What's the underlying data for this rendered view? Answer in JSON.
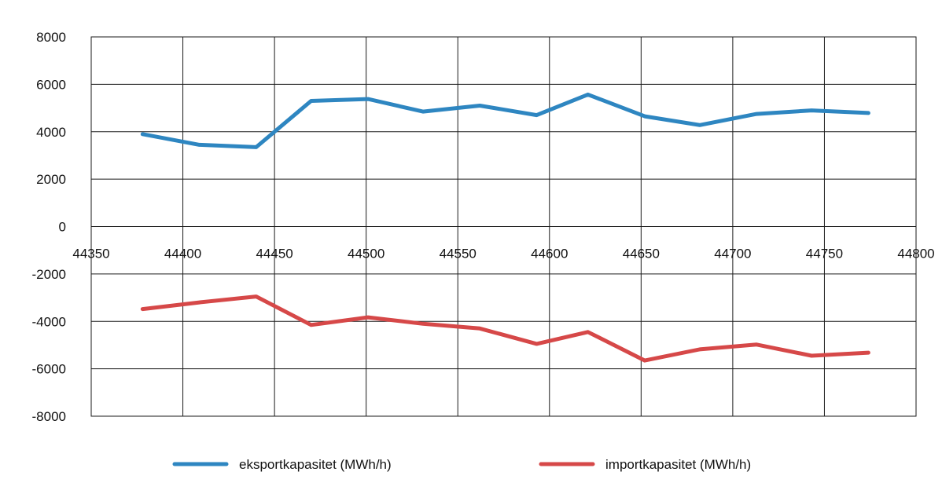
{
  "chart_data": {
    "type": "line",
    "title": "",
    "xlabel": "",
    "ylabel": "",
    "xlim": [
      44350,
      44800
    ],
    "ylim": [
      -8000,
      8000
    ],
    "x_ticks": [
      44350,
      44400,
      44450,
      44500,
      44550,
      44600,
      44650,
      44700,
      44750,
      44800
    ],
    "y_ticks": [
      8000,
      6000,
      4000,
      2000,
      0,
      -2000,
      -4000,
      -6000,
      -8000
    ],
    "grid": true,
    "legend_position": "bottom",
    "x": [
      44378,
      44409,
      44440,
      44470,
      44501,
      44531,
      44562,
      44593,
      44621,
      44652,
      44682,
      44713,
      44743,
      44774
    ],
    "series": [
      {
        "name": "eksportkapasitet (MWh/h)",
        "color": "#2e86c1",
        "values": [
          3900,
          3450,
          3350,
          5300,
          5380,
          4850,
          5100,
          4700,
          5570,
          4650,
          4280,
          4750,
          4900,
          4790
        ]
      },
      {
        "name": "importkapasitet (MWh/h)",
        "color": "#d64848",
        "values": [
          -3480,
          -3200,
          -2950,
          -4150,
          -3830,
          -4100,
          -4300,
          -4950,
          -4450,
          -5650,
          -5180,
          -4980,
          -5450,
          -5320
        ]
      }
    ]
  }
}
